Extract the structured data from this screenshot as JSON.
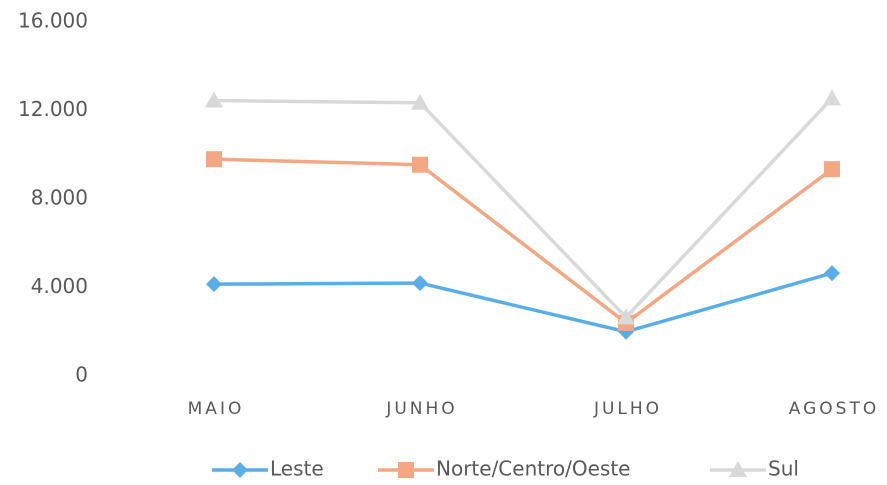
{
  "chart_data": {
    "type": "line",
    "categories": [
      "MAIO",
      "JUNHO",
      "JULHO",
      "AGOSTO"
    ],
    "series": [
      {
        "name": "Leste",
        "color": "#5aaee8",
        "marker": "diamond",
        "values": [
          4150,
          4200,
          2000,
          4650
        ]
      },
      {
        "name": "Norte/Centro/Oeste",
        "color": "#f3a783",
        "marker": "square",
        "values": [
          9800,
          9550,
          2400,
          9350
        ]
      },
      {
        "name": "Sul",
        "color": "#d9d9d9",
        "marker": "triangle",
        "values": [
          12450,
          12350,
          2650,
          12550
        ]
      }
    ],
    "ylim": [
      0,
      16000
    ],
    "yticks": [
      0,
      {
        "value": 4000,
        "label": "4.000"
      },
      {
        "value": 8000,
        "label": "8.000"
      },
      {
        "value": 12000,
        "label": "12.000"
      },
      {
        "value": 16000,
        "label": "16.000"
      }
    ],
    "grid": false,
    "legend": "bottom"
  }
}
